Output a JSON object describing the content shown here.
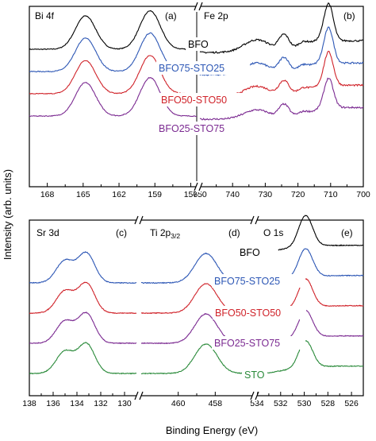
{
  "figure": {
    "ylabel": "Intensity (arb. units)",
    "xlabel": "Binding Energy (eV)"
  },
  "colors": {
    "BFO": "#000000",
    "BFO75-STO25": "#2d57b5",
    "BFO50-STO50": "#d0232a",
    "BFO25-STO75": "#7b2a91",
    "STO": "#2a8a3a"
  },
  "chart_data": [
    {
      "type": "line",
      "panel": "(a)",
      "title": "Bi 4f",
      "xlim": [
        169.5,
        155.5
      ],
      "xticks": [
        168,
        165,
        162,
        159,
        156
      ],
      "xticklabels": [
        "168",
        "165",
        "162",
        "159",
        "156"
      ],
      "series": [
        {
          "name": "BFO",
          "offset": 0,
          "peaks": [
            [
              164.8,
              1.0,
              0.85
            ],
            [
              159.4,
              1.15,
              0.85
            ]
          ]
        },
        {
          "name": "BFO75-STO25",
          "offset": -1,
          "peaks": [
            [
              164.8,
              1.0,
              0.85
            ],
            [
              159.4,
              1.15,
              0.85
            ]
          ]
        },
        {
          "name": "BFO50-STO50",
          "offset": -2,
          "peaks": [
            [
              164.8,
              1.0,
              0.85
            ],
            [
              159.4,
              1.15,
              0.85
            ]
          ]
        },
        {
          "name": "BFO25-STO75",
          "offset": -3,
          "peaks": [
            [
              164.8,
              1.0,
              0.85
            ],
            [
              159.4,
              1.15,
              0.85
            ]
          ]
        }
      ]
    },
    {
      "type": "line",
      "panel": "(b)",
      "title": "Fe 2p",
      "xlim": [
        750,
        700
      ],
      "xticks": [
        750,
        740,
        730,
        720,
        710,
        700
      ],
      "xticklabels": [
        "750",
        "740",
        "730",
        "720",
        "710",
        "700"
      ],
      "series": [
        {
          "name": "BFO",
          "offset": 0,
          "peaks": [
            [
              732.5,
              0.38,
              4.0
            ],
            [
              724.2,
              0.5,
              1.6
            ],
            [
              718.5,
              0.28,
              2.0
            ],
            [
              710.6,
              1.05,
              1.4
            ],
            [
              713.5,
              0.3,
              2.5
            ]
          ]
        },
        {
          "name": "BFO75-STO25",
          "offset": -1,
          "peaks": [
            [
              732.5,
              0.35,
              4.0
            ],
            [
              724.2,
              0.48,
              1.6
            ],
            [
              718.5,
              0.26,
              2.0
            ],
            [
              710.6,
              1.0,
              1.4
            ],
            [
              713.5,
              0.28,
              2.5
            ]
          ]
        },
        {
          "name": "BFO50-STO50",
          "offset": -2,
          "peaks": [
            [
              732.5,
              0.32,
              4.0
            ],
            [
              724.2,
              0.46,
              1.6
            ],
            [
              718.5,
              0.24,
              2.0
            ],
            [
              710.6,
              0.95,
              1.4
            ],
            [
              713.5,
              0.26,
              2.5
            ]
          ]
        },
        {
          "name": "BFO25-STO75",
          "offset": -3,
          "peaks": [
            [
              732.5,
              0.28,
              4.0
            ],
            [
              724.2,
              0.42,
              1.6
            ],
            [
              718.5,
              0.2,
              2.0
            ],
            [
              710.6,
              0.85,
              1.4
            ],
            [
              713.5,
              0.22,
              2.5
            ]
          ]
        }
      ],
      "series_labels": [
        "BFO",
        "BFO75-STO25",
        "BFO50-STO50",
        "BFO25-STO75"
      ]
    },
    {
      "type": "line",
      "panel": "(c)",
      "title": "Sr 3d",
      "xlim": [
        138,
        129
      ],
      "xticks": [
        138,
        136,
        134,
        132,
        130
      ],
      "xticklabels": [
        "138",
        "136",
        "134",
        "132",
        "130"
      ],
      "series": [
        {
          "name": "BFO75-STO25",
          "offset": -1,
          "peaks": [
            [
              135.0,
              0.75,
              0.75
            ],
            [
              133.2,
              1.0,
              0.7
            ]
          ]
        },
        {
          "name": "BFO50-STO50",
          "offset": -2,
          "peaks": [
            [
              135.0,
              0.75,
              0.75
            ],
            [
              133.2,
              1.0,
              0.7
            ]
          ]
        },
        {
          "name": "BFO25-STO75",
          "offset": -3,
          "peaks": [
            [
              135.0,
              0.75,
              0.75
            ],
            [
              133.2,
              1.0,
              0.7
            ]
          ]
        },
        {
          "name": "STO",
          "offset": -4,
          "peaks": [
            [
              135.0,
              0.75,
              0.75
            ],
            [
              133.2,
              1.0,
              0.7
            ]
          ]
        }
      ]
    },
    {
      "type": "line",
      "panel": "(d)",
      "title": "Ti 2p",
      "title_sub": "3/2",
      "xlim": [
        462,
        456
      ],
      "xticks": [
        460,
        458
      ],
      "xticklabels": [
        "460",
        "458"
      ],
      "series": [
        {
          "name": "BFO75-STO25",
          "offset": -1,
          "peaks": [
            [
              458.5,
              1.0,
              0.6
            ]
          ]
        },
        {
          "name": "BFO50-STO50",
          "offset": -2,
          "peaks": [
            [
              458.5,
              1.0,
              0.6
            ]
          ]
        },
        {
          "name": "BFO25-STO75",
          "offset": -3,
          "peaks": [
            [
              458.5,
              1.0,
              0.6
            ]
          ]
        },
        {
          "name": "STO",
          "offset": -4,
          "peaks": [
            [
              458.5,
              1.0,
              0.6
            ]
          ]
        }
      ]
    },
    {
      "type": "line",
      "panel": "(e)",
      "title": "O 1s",
      "xlim": [
        534,
        525
      ],
      "xticks": [
        534,
        532,
        530,
        528,
        526
      ],
      "xticklabels": [
        "534",
        "532",
        "530",
        "528",
        "526"
      ],
      "series": [
        {
          "name": "BFO",
          "offset": 0,
          "peaks": [
            [
              529.9,
              1.15,
              0.6
            ],
            [
              531.5,
              0.12,
              0.9
            ]
          ]
        },
        {
          "name": "BFO75-STO25",
          "offset": -1,
          "peaks": [
            [
              529.9,
              1.05,
              0.6
            ],
            [
              531.5,
              0.12,
              0.9
            ]
          ]
        },
        {
          "name": "BFO50-STO50",
          "offset": -2,
          "peaks": [
            [
              529.9,
              1.05,
              0.6
            ],
            [
              531.5,
              0.12,
              0.9
            ]
          ]
        },
        {
          "name": "BFO25-STO75",
          "offset": -3,
          "peaks": [
            [
              529.9,
              1.0,
              0.6
            ],
            [
              531.5,
              0.12,
              0.9
            ]
          ]
        },
        {
          "name": "STO",
          "offset": -4,
          "peaks": [
            [
              529.9,
              1.0,
              0.6
            ],
            [
              531.5,
              0.1,
              0.9
            ]
          ]
        }
      ],
      "series_labels": [
        "BFO",
        "BFO75-STO25",
        "BFO50-STO50",
        "BFO25-STO75",
        "STO"
      ]
    }
  ]
}
